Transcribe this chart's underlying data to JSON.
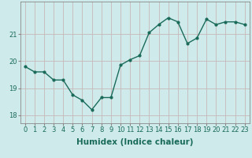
{
  "x": [
    0,
    1,
    2,
    3,
    4,
    5,
    6,
    7,
    8,
    9,
    10,
    11,
    12,
    13,
    14,
    15,
    16,
    17,
    18,
    19,
    20,
    21,
    22,
    23
  ],
  "y": [
    19.8,
    19.6,
    19.6,
    19.3,
    19.3,
    18.75,
    18.55,
    18.2,
    18.65,
    18.65,
    19.85,
    20.05,
    20.2,
    21.05,
    21.35,
    21.6,
    21.45,
    20.65,
    20.85,
    21.55,
    21.35,
    21.45,
    21.45,
    21.35
  ],
  "line_color": "#1a6b5a",
  "marker": "o",
  "marker_size": 2,
  "bg_color": "#ceeaea",
  "grid_color_h": "#c8b8b8",
  "grid_color_v": "#c8b8b8",
  "xlabel": "Humidex (Indice chaleur)",
  "ylabel": "",
  "ylim": [
    17.7,
    22.2
  ],
  "xlim": [
    -0.5,
    23.5
  ],
  "yticks": [
    18,
    19,
    20,
    21
  ],
  "xticks": [
    0,
    1,
    2,
    3,
    4,
    5,
    6,
    7,
    8,
    9,
    10,
    11,
    12,
    13,
    14,
    15,
    16,
    17,
    18,
    19,
    20,
    21,
    22,
    23
  ],
  "tick_fontsize": 6,
  "xlabel_fontsize": 7.5,
  "line_width": 1.0
}
